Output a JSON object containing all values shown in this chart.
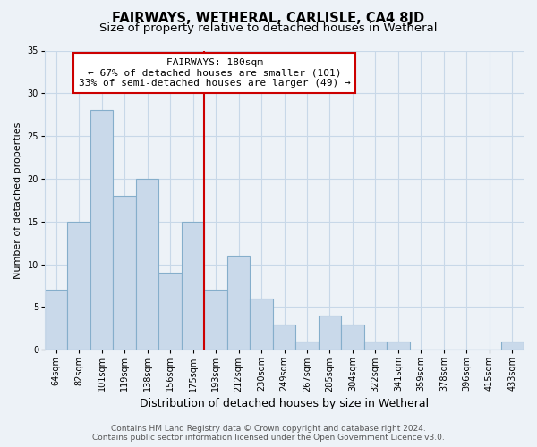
{
  "title": "FAIRWAYS, WETHERAL, CARLISLE, CA4 8JD",
  "subtitle": "Size of property relative to detached houses in Wetheral",
  "xlabel": "Distribution of detached houses by size in Wetheral",
  "ylabel": "Number of detached properties",
  "categories": [
    "64sqm",
    "82sqm",
    "101sqm",
    "119sqm",
    "138sqm",
    "156sqm",
    "175sqm",
    "193sqm",
    "212sqm",
    "230sqm",
    "249sqm",
    "267sqm",
    "285sqm",
    "304sqm",
    "322sqm",
    "341sqm",
    "359sqm",
    "378sqm",
    "396sqm",
    "415sqm",
    "433sqm"
  ],
  "values": [
    7,
    15,
    28,
    18,
    20,
    9,
    15,
    7,
    11,
    6,
    3,
    1,
    4,
    3,
    1,
    1,
    0,
    0,
    0,
    0,
    1
  ],
  "bar_color": "#c9d9ea",
  "bar_edgecolor": "#85aecb",
  "reference_line_x": 6.5,
  "reference_line_color": "#cc0000",
  "annotation_text": "FAIRWAYS: 180sqm\n← 67% of detached houses are smaller (101)\n33% of semi-detached houses are larger (49) →",
  "annotation_box_edgecolor": "#cc0000",
  "annotation_box_facecolor": "#ffffff",
  "ylim": [
    0,
    35
  ],
  "yticks": [
    0,
    5,
    10,
    15,
    20,
    25,
    30,
    35
  ],
  "grid_color": "#c8d8e8",
  "bg_color": "#edf2f7",
  "footer_line1": "Contains HM Land Registry data © Crown copyright and database right 2024.",
  "footer_line2": "Contains public sector information licensed under the Open Government Licence v3.0.",
  "title_fontsize": 10.5,
  "subtitle_fontsize": 9.5,
  "xlabel_fontsize": 9,
  "ylabel_fontsize": 8,
  "tick_fontsize": 7,
  "annotation_fontsize": 8,
  "footer_fontsize": 6.5
}
